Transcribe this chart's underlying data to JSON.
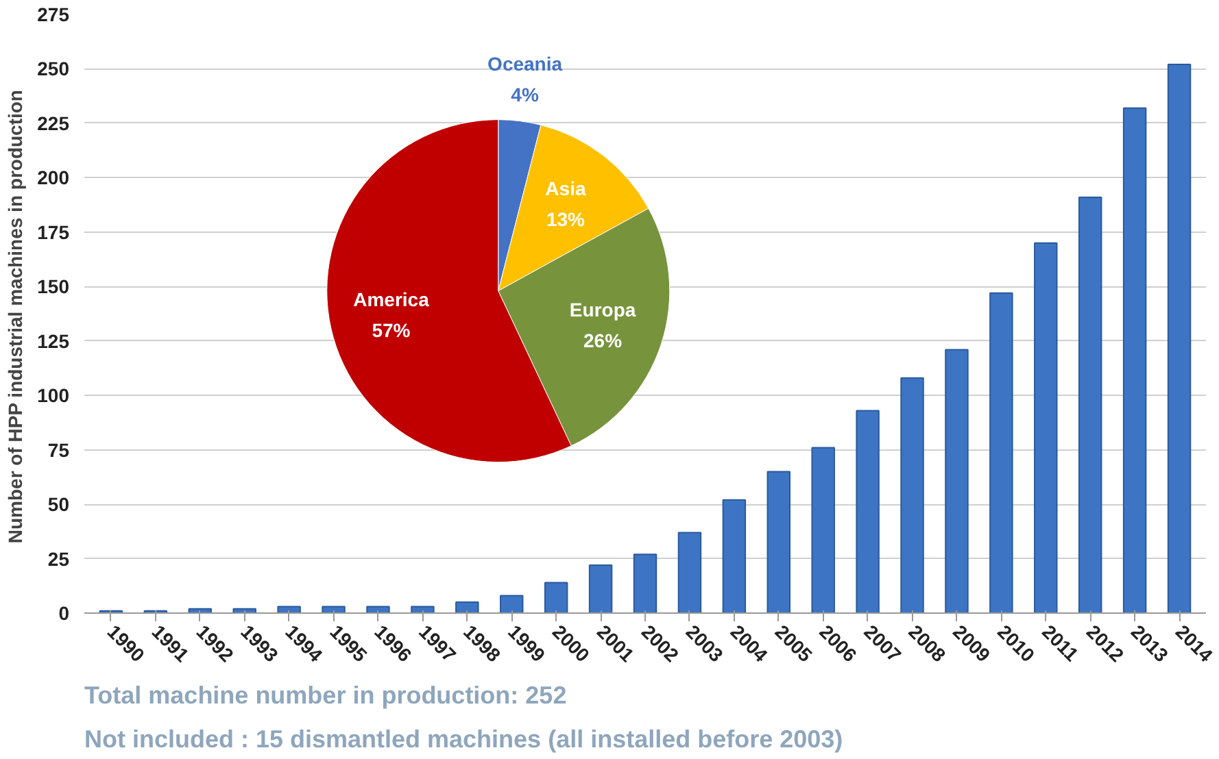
{
  "chart_data": [
    {
      "type": "bar",
      "ylabel": "Number of HPP industrial machines  in production",
      "categories": [
        "1990",
        "1991",
        "1992",
        "1993",
        "1994",
        "1995",
        "1996",
        "1997",
        "1998",
        "1999",
        "2000",
        "2001",
        "2002",
        "2003",
        "2004",
        "2005",
        "2006",
        "2007",
        "2008",
        "2009",
        "2010",
        "2011",
        "2012",
        "2013",
        "2014"
      ],
      "values": [
        1,
        1,
        2,
        2,
        3,
        3,
        3,
        3,
        5,
        8,
        14,
        22,
        27,
        37,
        52,
        65,
        76,
        93,
        108,
        121,
        147,
        170,
        191,
        232,
        252
      ],
      "color": "#3d75c4",
      "ylim": [
        0,
        275
      ],
      "yticks": [
        0,
        25,
        50,
        75,
        100,
        125,
        150,
        175,
        200,
        225,
        250,
        275
      ],
      "grid": "y",
      "annotations": [
        "Total machine number in production: 252",
        "Not included : 15 dismantled machines (all installed before 2003)"
      ]
    },
    {
      "type": "pie",
      "categories": [
        "Oceania",
        "Asia",
        "Europa",
        "America"
      ],
      "values": [
        4,
        13,
        26,
        57
      ],
      "colors": [
        "#4472c4",
        "#ffc000",
        "#77933c",
        "#c00000"
      ],
      "value_labels": [
        "4%",
        "13%",
        "26%",
        "57%"
      ]
    }
  ]
}
